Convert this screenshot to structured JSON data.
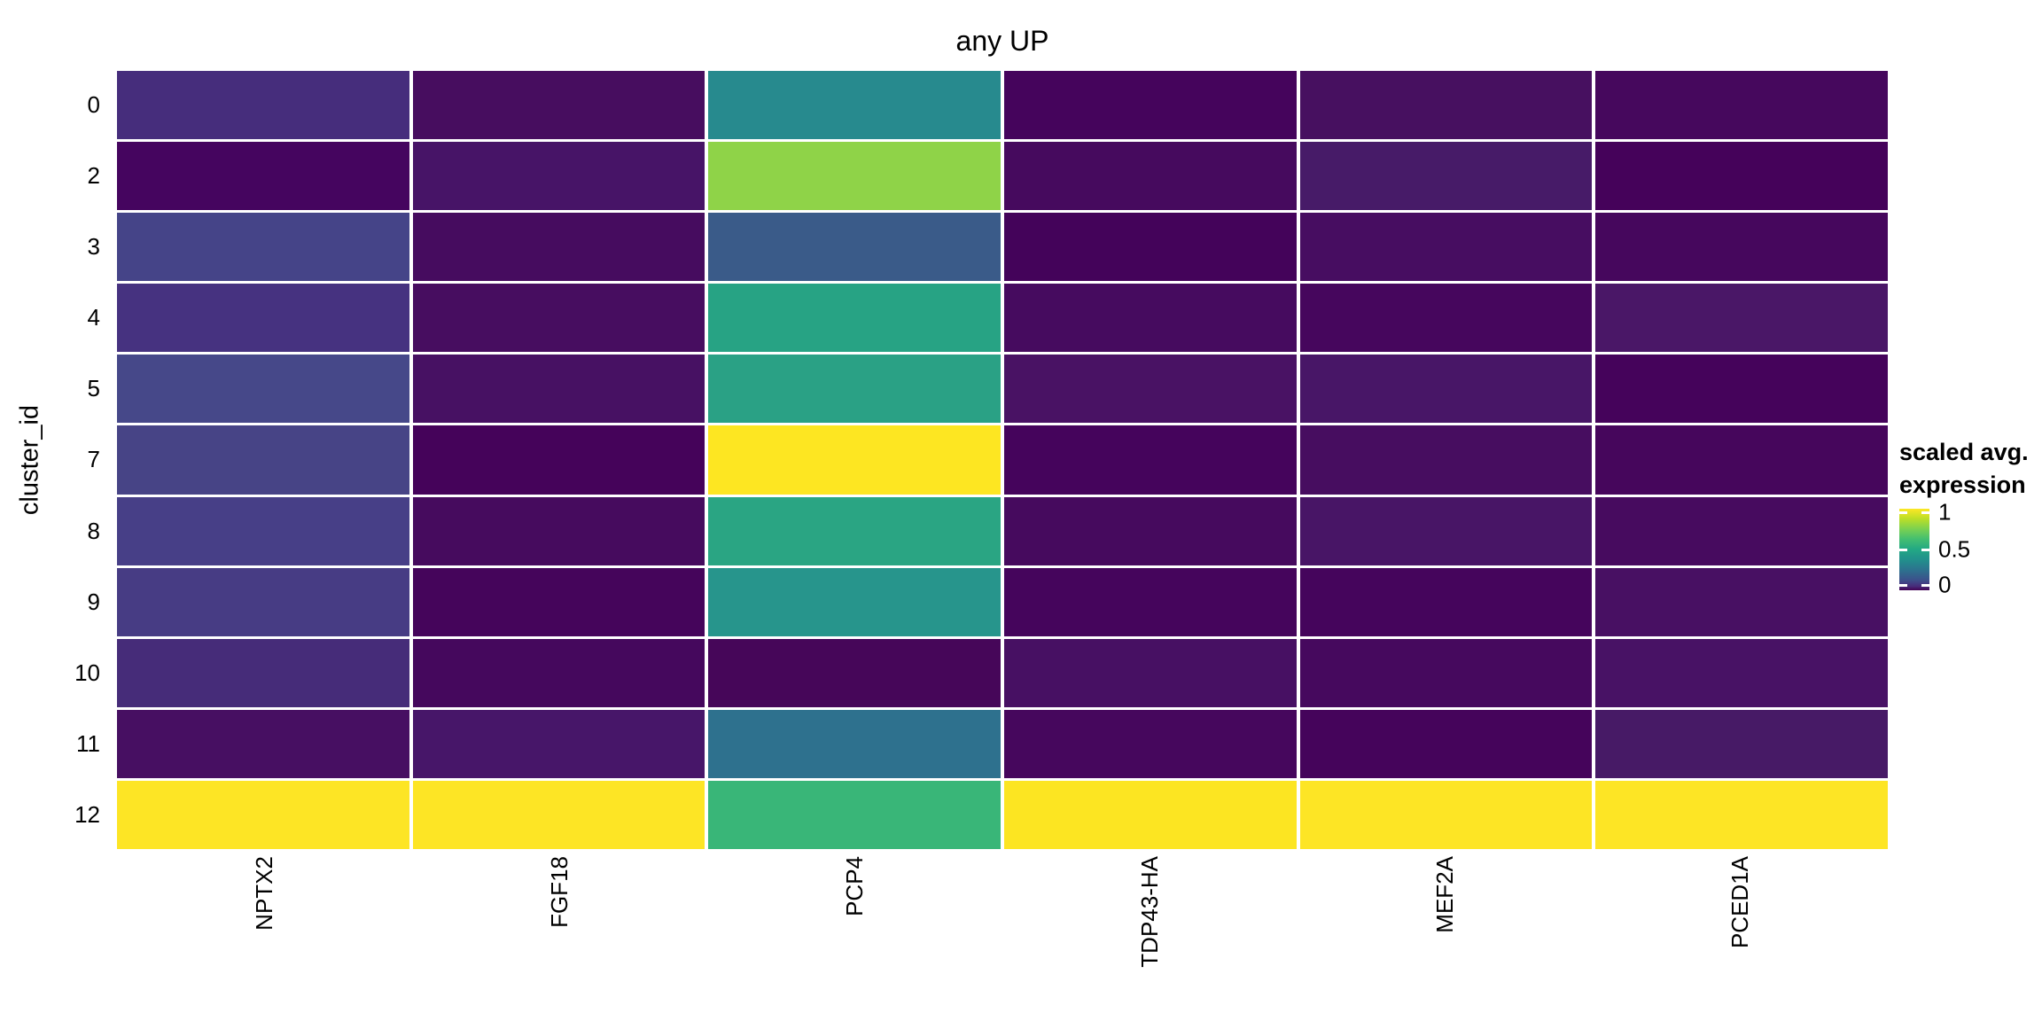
{
  "title": "any UP",
  "y_axis": {
    "label": "cluster_id",
    "ticks": [
      "0",
      "2",
      "3",
      "4",
      "5",
      "7",
      "8",
      "9",
      "10",
      "11",
      "12"
    ]
  },
  "x_axis": {
    "ticks": [
      "NPTX2",
      "FGF18",
      "PCP4",
      "TDP43-HA",
      "MEF2A",
      "PCED1A"
    ]
  },
  "legend": {
    "title_line1": "scaled avg.",
    "title_line2": "expression",
    "ticks": [
      "1",
      "0.5",
      "0"
    ]
  },
  "colors": {
    "background": "#ffffff",
    "tile_gap": "#ffffff",
    "text": "#000000",
    "viridis_min": "#440154",
    "viridis_mid": "#21918c",
    "viridis_max": "#fde725"
  },
  "chart_data": {
    "type": "heatmap",
    "title": "any UP",
    "ylabel": "cluster_id",
    "xlabel": "",
    "rows": [
      "0",
      "2",
      "3",
      "4",
      "5",
      "7",
      "8",
      "9",
      "10",
      "11",
      "12"
    ],
    "columns": [
      "NPTX2",
      "FGF18",
      "PCP4",
      "TDP43-HA",
      "MEF2A",
      "PCED1A"
    ],
    "values": [
      [
        0.12,
        0.04,
        0.45,
        0.01,
        0.05,
        0.03
      ],
      [
        0.02,
        0.06,
        0.8,
        0.03,
        0.08,
        0.01
      ],
      [
        0.18,
        0.04,
        0.26,
        0.01,
        0.04,
        0.02
      ],
      [
        0.13,
        0.04,
        0.55,
        0.03,
        0.02,
        0.07
      ],
      [
        0.19,
        0.05,
        0.54,
        0.06,
        0.06,
        0.01
      ],
      [
        0.18,
        0.01,
        1.0,
        0.01,
        0.04,
        0.02
      ],
      [
        0.17,
        0.03,
        0.56,
        0.03,
        0.06,
        0.03
      ],
      [
        0.16,
        0.02,
        0.51,
        0.02,
        0.02,
        0.05
      ],
      [
        0.12,
        0.03,
        0.02,
        0.05,
        0.03,
        0.05
      ],
      [
        0.04,
        0.07,
        0.34,
        0.02,
        0.01,
        0.08
      ],
      [
        1.0,
        1.0,
        0.61,
        1.0,
        1.0,
        1.0
      ]
    ],
    "cell_colors": [
      [
        "#462d7c",
        "#470d5f",
        "#278a8e",
        "#45045c",
        "#471060",
        "#46085d"
      ],
      [
        "#45055f",
        "#471467",
        "#8fd348",
        "#460a5e",
        "#471b68",
        "#45025a"
      ],
      [
        "#454488",
        "#460c5f",
        "#3a5b89",
        "#44035a",
        "#470d61",
        "#46075d"
      ],
      [
        "#463280",
        "#470d60",
        "#27a384",
        "#460b5f",
        "#46065d",
        "#4a1767"
      ],
      [
        "#464889",
        "#471163",
        "#2aa185",
        "#491264",
        "#481667",
        "#45035b"
      ],
      [
        "#474486",
        "#45035a",
        "#fde622",
        "#45045c",
        "#470d60",
        "#46065c"
      ],
      [
        "#473f87",
        "#460b5e",
        "#2aa583",
        "#460a5e",
        "#481566",
        "#470b5f"
      ],
      [
        "#473c84",
        "#45055b",
        "#27958c",
        "#45055c",
        "#45055c",
        "#481063"
      ],
      [
        "#462c79",
        "#45085d",
        "#460659",
        "#471063",
        "#46095e",
        "#481265"
      ],
      [
        "#470f62",
        "#471669",
        "#2e718e",
        "#46075d",
        "#45045b",
        "#471a66"
      ],
      [
        "#fde525",
        "#fde525",
        "#39b678",
        "#fce522",
        "#fde525",
        "#fde525"
      ]
    ],
    "colorscale": "viridis",
    "value_range": [
      0,
      1
    ],
    "legend_title": "scaled avg. expression",
    "legend_ticks": [
      1,
      0.5,
      0
    ],
    "legend_position": "right",
    "grid": false
  }
}
